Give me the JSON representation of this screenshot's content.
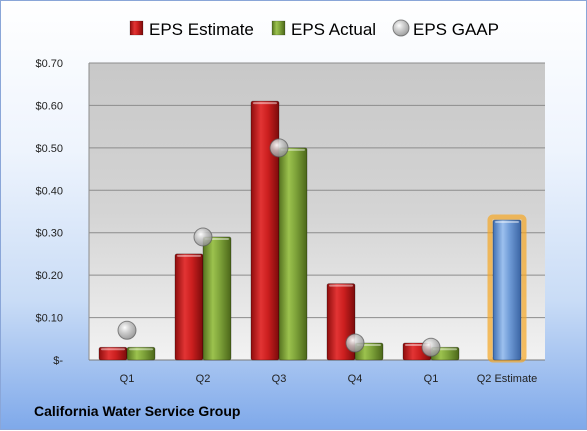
{
  "chart_data": {
    "type": "bar",
    "categories": [
      "Q1",
      "Q2",
      "Q3",
      "Q4",
      "Q1",
      "Q2 Estimate"
    ],
    "series": [
      {
        "name": "EPS Estimate",
        "kind": "bar",
        "color": "#cc1f1f",
        "values": [
          0.03,
          0.25,
          0.61,
          0.18,
          0.04,
          null
        ]
      },
      {
        "name": "EPS Actual",
        "kind": "bar",
        "color": "#7ea33a",
        "values": [
          0.03,
          0.29,
          0.5,
          0.04,
          0.03,
          null
        ]
      },
      {
        "name": "EPS GAAP",
        "kind": "marker",
        "color": "#a8a8a8",
        "values": [
          0.07,
          0.29,
          0.5,
          0.04,
          0.03,
          null
        ]
      },
      {
        "name": "",
        "kind": "bar",
        "color": "#6e9ad6",
        "highlight": "#f5a623",
        "values": [
          null,
          null,
          null,
          null,
          null,
          0.33
        ]
      }
    ],
    "y_ticks": [
      "$-",
      "$0.10",
      "$0.20",
      "$0.30",
      "$0.40",
      "$0.50",
      "$0.60",
      "$0.70"
    ],
    "ylim": [
      0,
      0.7
    ],
    "grid": true,
    "legend_position": "top"
  },
  "company_name": "California Water Service Group"
}
